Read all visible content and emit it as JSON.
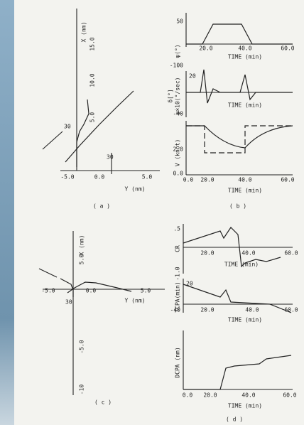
{
  "panel_a": {
    "x_axis_title": "X (nm)",
    "y_axis_title": "Y (nm)",
    "x_ticks": [
      "5.0",
      "10.0",
      "15.0"
    ],
    "y_ticks": [
      "-5.0",
      "0.0",
      "5.0"
    ],
    "annotations": [
      "30",
      "30"
    ],
    "caption": "( a )"
  },
  "panel_b": {
    "plots": [
      {
        "y_axis_title": "ψ(°)",
        "y_ticks": [
          "50",
          "-100"
        ],
        "x_ticks": [
          "20.0",
          "40.0",
          "60.0"
        ],
        "x_axis_title": "TIME (min)"
      },
      {
        "y_axis_title": "δ[°]",
        "y_axis_title_2": "ψ̇×10(°/sec)",
        "y_ticks": [
          "20",
          "-40"
        ],
        "x_axis_title": "TIME (min)"
      },
      {
        "y_axis_title": "V (knot)",
        "y_ticks": [
          "2.0",
          "0.0"
        ],
        "x_ticks": [
          "0.0",
          "20.0",
          "40.0",
          "60.0"
        ],
        "x_axis_title": "TIME (min)"
      }
    ],
    "caption": "( b )"
  },
  "panel_c": {
    "x_axis_title": "X (nm)",
    "y_axis_title": "Y (nm)",
    "x_ticks": [
      "5.0",
      "-5.0",
      "-10"
    ],
    "y_ticks": [
      "-5.0",
      "0.0",
      "5.0"
    ],
    "annotations": [
      "30"
    ],
    "caption": "( c )"
  },
  "panel_d": {
    "plots": [
      {
        "y_axis_title": "CR",
        "y_ticks": [
          ".5",
          "-1.0"
        ],
        "x_ticks": [
          "20.0",
          "40.0",
          "60.0"
        ],
        "x_axis_title": "TIME (min)"
      },
      {
        "y_axis_title": "TCPA(min)",
        "y_ticks": [
          "20",
          "-40"
        ],
        "x_ticks": [
          "20.0",
          "40.0",
          "60.0"
        ],
        "x_axis_title": "TIME (min)"
      },
      {
        "y_axis_title": "DCPA (nm)",
        "x_ticks": [
          "0.0",
          "20.0",
          "40.0",
          "60.0"
        ],
        "x_axis_title": "TIME (min)"
      }
    ],
    "caption": "( d )"
  }
}
